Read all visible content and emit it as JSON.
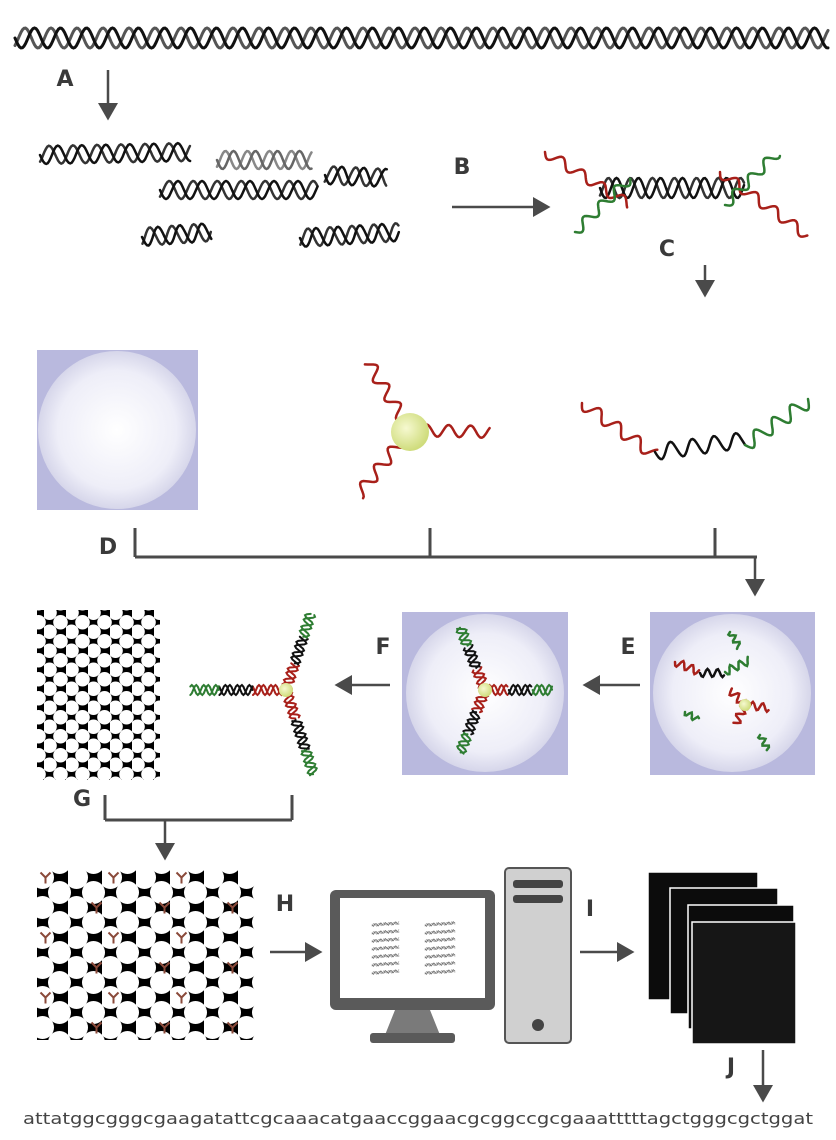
{
  "step_labels": [
    "A",
    "B",
    "C",
    "D",
    "E",
    "F",
    "G",
    "H",
    "I",
    "J"
  ],
  "sequence": "attatggcgggcgaagatattcgcaaacatgaaccggaacgcggccgcgaaatttttagctgggcgctggat"
}
